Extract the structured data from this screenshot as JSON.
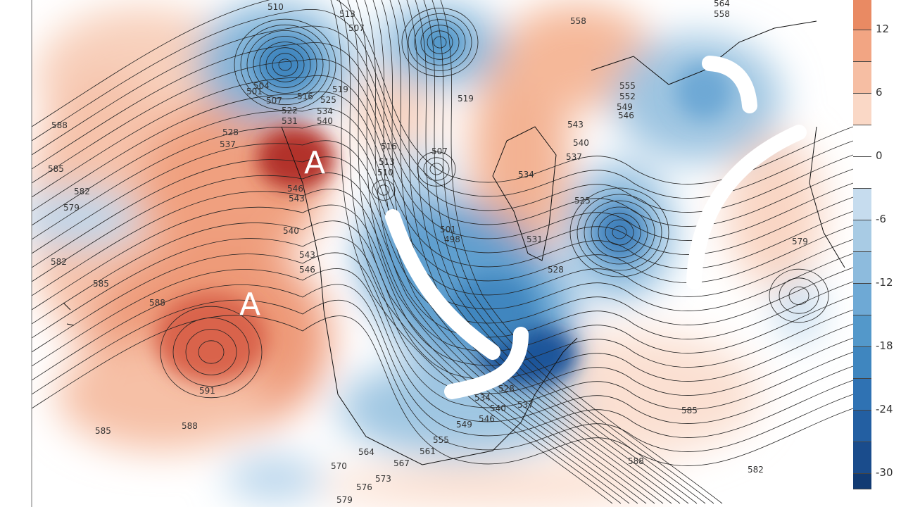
{
  "map": {
    "type": "500 hPa height with anomaly shading",
    "annotation_highs": [
      "A",
      "A"
    ],
    "contour_labels": [
      "510",
      "513",
      "507",
      "588",
      "585",
      "582",
      "579",
      "582",
      "585",
      "588",
      "591",
      "588",
      "585",
      "519",
      "525",
      "534",
      "540",
      "501",
      "504",
      "507",
      "516",
      "522",
      "531",
      "528",
      "537",
      "546",
      "543",
      "540",
      "543",
      "546",
      "516",
      "513",
      "510",
      "507",
      "519",
      "501",
      "498",
      "534",
      "537",
      "540",
      "543",
      "531",
      "528",
      "525",
      "555",
      "552",
      "549",
      "546",
      "558",
      "564",
      "558",
      "579",
      "585",
      "582",
      "588",
      "564",
      "570",
      "567",
      "561",
      "555",
      "549",
      "546",
      "540",
      "537",
      "576",
      "573",
      "579",
      "534",
      "528"
    ]
  },
  "colorbar": {
    "ticks": [
      "12",
      "6",
      "0",
      "-6",
      "-12",
      "-18",
      "-24",
      "-30"
    ],
    "colors": [
      "#e98a63",
      "#f2a583",
      "#f6bea3",
      "#fad8c6",
      "#ffffff",
      "#ffffff",
      "#c6dcee",
      "#a8cbe4",
      "#8dbbdd",
      "#6ea9d5",
      "#5398ca",
      "#3f86bf",
      "#2f72b3",
      "#235fa2",
      "#1a4c8c",
      "#123b73"
    ]
  }
}
